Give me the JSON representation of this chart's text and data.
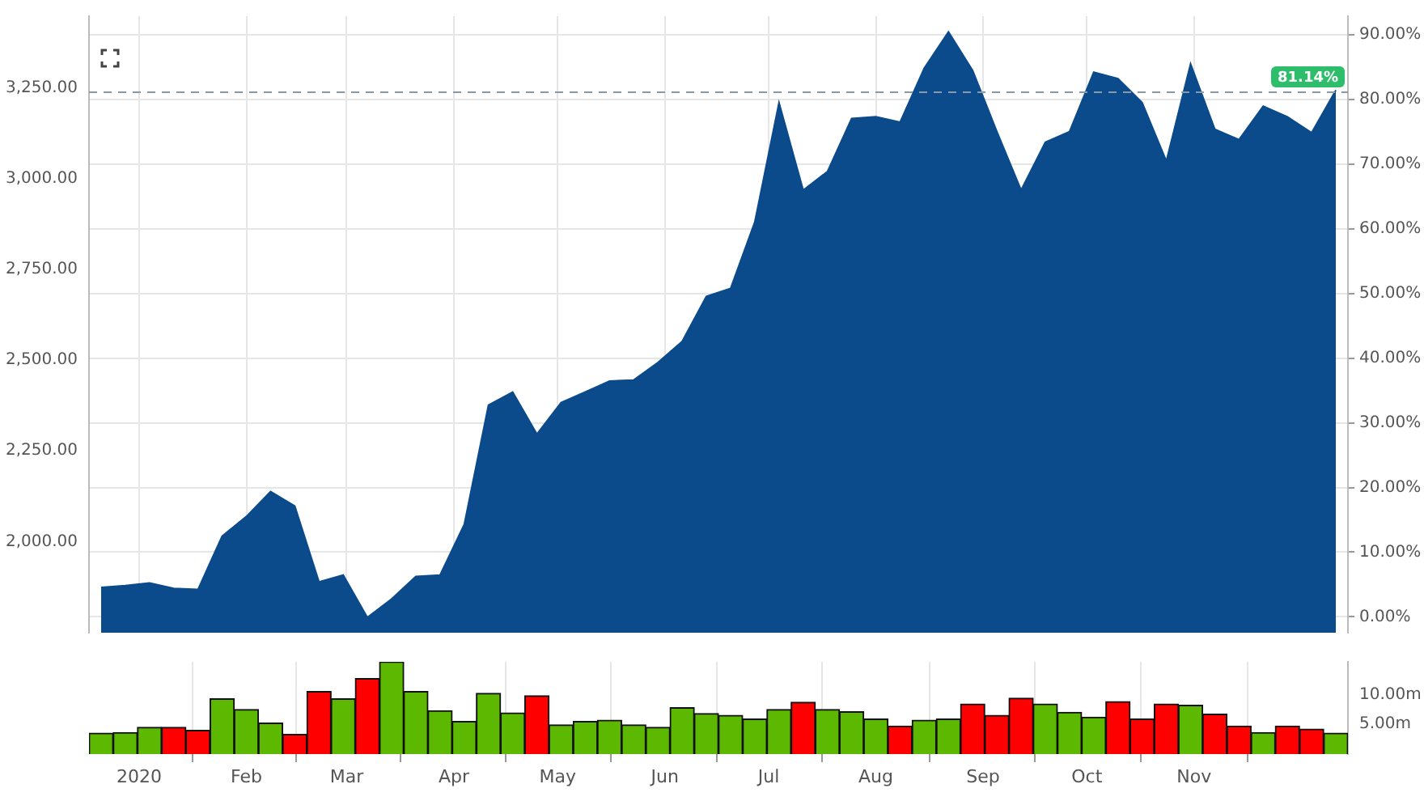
{
  "chart_data": [
    {
      "type": "area",
      "x": [
        "2019-12-21",
        "2019-12-28",
        "2020-01-04",
        "2020-01-11",
        "2020-01-18",
        "2020-01-25",
        "2020-02-01",
        "2020-02-08",
        "2020-02-15",
        "2020-02-22",
        "2020-02-29",
        "2020-03-07",
        "2020-03-14",
        "2020-03-21",
        "2020-03-28",
        "2020-04-04",
        "2020-04-11",
        "2020-04-18",
        "2020-04-25",
        "2020-05-02",
        "2020-05-09",
        "2020-05-16",
        "2020-05-23",
        "2020-05-30",
        "2020-06-06",
        "2020-06-13",
        "2020-06-20",
        "2020-06-27",
        "2020-07-04",
        "2020-07-11",
        "2020-07-18",
        "2020-07-25",
        "2020-08-01",
        "2020-08-08",
        "2020-08-15",
        "2020-08-22",
        "2020-08-29",
        "2020-09-05",
        "2020-09-12",
        "2020-09-19",
        "2020-09-26",
        "2020-10-03",
        "2020-10-10",
        "2020-10-17",
        "2020-10-24",
        "2020-10-31",
        "2020-11-07",
        "2020-11-14",
        "2020-11-21",
        "2020-11-28",
        "2020-12-05",
        "2020-12-12"
      ],
      "values": [
        1874,
        1879,
        1886,
        1871,
        1868,
        2015,
        2069,
        2138,
        2098,
        1889,
        1908,
        1791,
        1842,
        1904,
        1908,
        2047,
        2376,
        2412,
        2296,
        2383,
        2412,
        2442,
        2445,
        2493,
        2551,
        2675,
        2697,
        2880,
        3209,
        2968,
        3019,
        3165,
        3170,
        3155,
        3304,
        3404,
        3297,
        3129,
        2968,
        3100,
        3129,
        3293,
        3275,
        3209,
        3048,
        3316,
        3136,
        3107,
        3199,
        3170,
        3126,
        3243
      ],
      "color": "#0b4a8b",
      "xlim": [
        "2019-12-17T12:00",
        "2020-12-15T12:00"
      ],
      "xticks": [
        {
          "value": "2020-01-01",
          "label": null
        },
        {
          "value": "2020-02-01",
          "label": null
        },
        {
          "value": "2020-03-01",
          "label": null
        },
        {
          "value": "2020-04-01",
          "label": null
        },
        {
          "value": "2020-05-01",
          "label": null
        },
        {
          "value": "2020-06-01",
          "label": null
        },
        {
          "value": "2020-07-01",
          "label": null
        },
        {
          "value": "2020-08-01",
          "label": null
        },
        {
          "value": "2020-09-01",
          "label": null
        },
        {
          "value": "2020-10-01",
          "label": null
        },
        {
          "value": "2020-11-01",
          "label": null
        }
      ],
      "ylim": [
        1749,
        3447
      ],
      "yticks": [
        {
          "value": 2000,
          "label": "2,000.00"
        },
        {
          "value": 2250,
          "label": "2,250.00"
        },
        {
          "value": 2500,
          "label": "2,500.00"
        },
        {
          "value": 2750,
          "label": "2,750.00"
        },
        {
          "value": 3000,
          "label": "3,000.00"
        },
        {
          "value": 3250,
          "label": "3,250.00"
        }
      ],
      "y2lim": [
        -2.46,
        92.9
      ],
      "y2ticks": [
        {
          "value": 0,
          "label": "0.00%"
        },
        {
          "value": 10,
          "label": "10.00%"
        },
        {
          "value": 20,
          "label": "20.00%"
        },
        {
          "value": 30,
          "label": "30.00%"
        },
        {
          "value": 40,
          "label": "40.00%"
        },
        {
          "value": 50,
          "label": "50.00%"
        },
        {
          "value": 60,
          "label": "60.00%"
        },
        {
          "value": 70,
          "label": "70.00%"
        },
        {
          "value": 80,
          "label": "80.00%"
        },
        {
          "value": 90,
          "label": "90.00%"
        }
      ],
      "ref_lines": [
        {
          "axis": "y2",
          "value": 81.14,
          "label": "81.14%",
          "color": "#8a99a8",
          "line_style": "dashed"
        }
      ],
      "grid": true,
      "tick_labels": "y"
    },
    {
      "type": "bar",
      "x": [
        "2019-12-21",
        "2019-12-28",
        "2020-01-04",
        "2020-01-11",
        "2020-01-18",
        "2020-01-25",
        "2020-02-01",
        "2020-02-08",
        "2020-02-15",
        "2020-02-22",
        "2020-02-29",
        "2020-03-07",
        "2020-03-14",
        "2020-03-21",
        "2020-03-28",
        "2020-04-04",
        "2020-04-11",
        "2020-04-18",
        "2020-04-25",
        "2020-05-02",
        "2020-05-09",
        "2020-05-16",
        "2020-05-23",
        "2020-05-30",
        "2020-06-06",
        "2020-06-13",
        "2020-06-20",
        "2020-06-27",
        "2020-07-04",
        "2020-07-11",
        "2020-07-18",
        "2020-07-25",
        "2020-08-01",
        "2020-08-08",
        "2020-08-15",
        "2020-08-22",
        "2020-08-29",
        "2020-09-05",
        "2020-09-12",
        "2020-09-19",
        "2020-09-26",
        "2020-10-03",
        "2020-10-10",
        "2020-10-17",
        "2020-10-24",
        "2020-10-31",
        "2020-11-07",
        "2020-11-14",
        "2020-11-21",
        "2020-11-28",
        "2020-12-05",
        "2020-12-12"
      ],
      "values": [
        3.5,
        3.6,
        4.5,
        4.5,
        4.0,
        9.3,
        7.5,
        5.2,
        3.3,
        10.5,
        9.3,
        12.7,
        15.5,
        10.5,
        7.3,
        5.5,
        10.2,
        6.9,
        9.8,
        4.9,
        5.5,
        5.7,
        4.9,
        4.5,
        7.8,
        6.8,
        6.5,
        5.9,
        7.5,
        8.7,
        7.5,
        7.1,
        5.9,
        4.7,
        5.7,
        5.9,
        8.4,
        6.5,
        9.4,
        8.4,
        7.0,
        6.2,
        8.8,
        5.9,
        8.4,
        8.2,
        6.7,
        4.7,
        3.6,
        4.7,
        4.2,
        3.5
      ],
      "colors": [
        "#5cb800",
        "#5cb800",
        "#5cb800",
        "#ff0000",
        "#ff0000",
        "#5cb800",
        "#5cb800",
        "#5cb800",
        "#ff0000",
        "#ff0000",
        "#5cb800",
        "#ff0000",
        "#5cb800",
        "#5cb800",
        "#5cb800",
        "#5cb800",
        "#5cb800",
        "#5cb800",
        "#ff0000",
        "#5cb800",
        "#5cb800",
        "#5cb800",
        "#5cb800",
        "#5cb800",
        "#5cb800",
        "#5cb800",
        "#5cb800",
        "#5cb800",
        "#5cb800",
        "#ff0000",
        "#5cb800",
        "#5cb800",
        "#5cb800",
        "#ff0000",
        "#5cb800",
        "#5cb800",
        "#ff0000",
        "#ff0000",
        "#ff0000",
        "#5cb800",
        "#5cb800",
        "#5cb800",
        "#ff0000",
        "#ff0000",
        "#ff0000",
        "#5cb800",
        "#ff0000",
        "#ff0000",
        "#5cb800",
        "#ff0000",
        "#ff0000",
        "#5cb800"
      ],
      "xlim": [
        "2019-12-17T12:00",
        "2020-12-15T12:00"
      ],
      "xticks": [
        {
          "value": "2020-01-01",
          "label": "2020"
        },
        {
          "value": "2020-02-01",
          "label": "Feb"
        },
        {
          "value": "2020-03-01",
          "label": "Mar"
        },
        {
          "value": "2020-04-01",
          "label": "Apr"
        },
        {
          "value": "2020-05-01",
          "label": "May"
        },
        {
          "value": "2020-06-01",
          "label": "Jun"
        },
        {
          "value": "2020-07-01",
          "label": "Jul"
        },
        {
          "value": "2020-08-01",
          "label": "Aug"
        },
        {
          "value": "2020-09-01",
          "label": "Sep"
        },
        {
          "value": "2020-10-01",
          "label": "Oct"
        },
        {
          "value": "2020-11-01",
          "label": "Nov"
        }
      ],
      "ylim": [
        0,
        15.5
      ],
      "yticks": [
        {
          "value": 5,
          "label": "5.00m"
        },
        {
          "value": 10,
          "label": "10.00m"
        }
      ],
      "grid": "x"
    }
  ]
}
